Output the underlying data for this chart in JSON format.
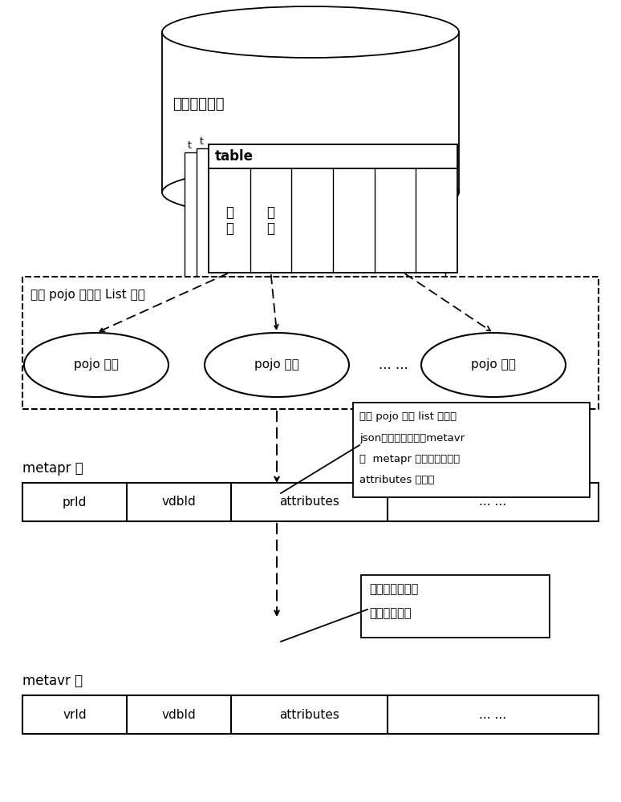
{
  "bg_color": "#ffffff",
  "text_color": "#000000",
  "db_label": "关系型数据库",
  "table_label": "table",
  "field_label1": "字\n段",
  "field_label2": "字\n段",
  "list_box_label": "字段 pojo 实例的 List 数组",
  "pojo_label1": "pojo 实例",
  "pojo_label2": "pojo 实例",
  "pojo_label3": "pojo 实例",
  "dots_label": "... ...",
  "metapr_label": "metapr 表",
  "metapr_f1": "prId",
  "metapr_f2": "vdbId",
  "metapr_f3": "attributes",
  "metapr_f4": "... ...",
  "metavr_label": "metavr 表",
  "metavr_f1": "vrId",
  "metavr_f2": "vdbId",
  "metavr_f3": "attributes",
  "metavr_f4": "... ...",
  "ann1_line1": "字段 pojo 实例 list 数组转",
  "ann1_line2": "json字符串持久化为metavr",
  "ann1_line3": "及  metapr 库表一数据记录",
  "ann1_line4": "attributes 字段値",
  "ann2_line1": "通过字段映射値",
  "ann2_line2": "建立映射关系",
  "card_t1": "t",
  "card_t2": "t"
}
